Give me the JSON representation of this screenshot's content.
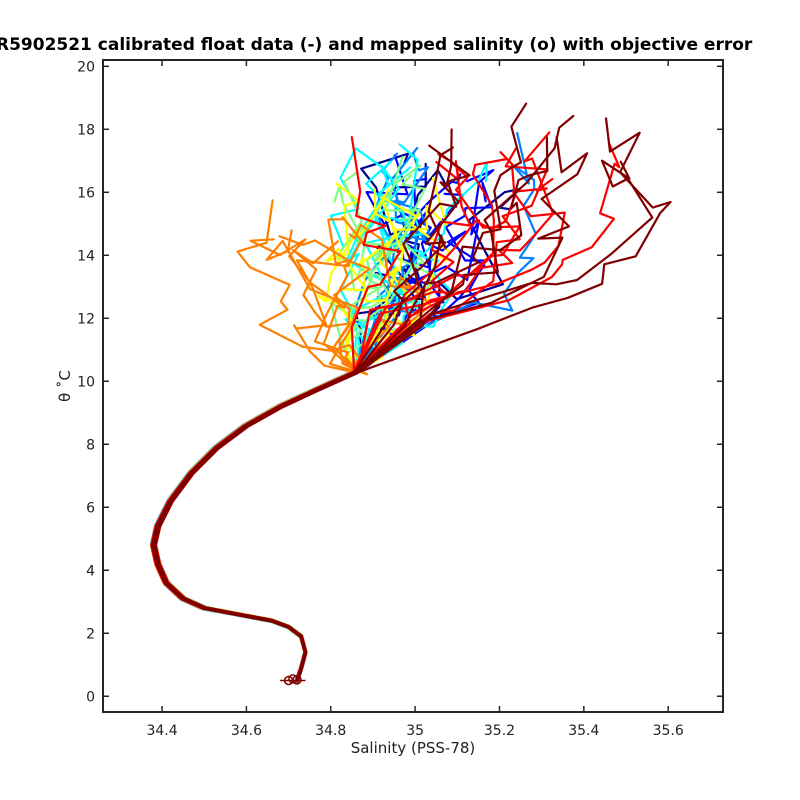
{
  "chart_data": {
    "type": "line",
    "title": "R5902521 calibrated float data (-) and mapped salinity (o) with objective error",
    "xlabel": "Salinity (PSS-78)",
    "ylabel": "θ ˚C",
    "xlim": [
      34.26,
      35.73
    ],
    "ylim": [
      -0.5,
      20.2
    ],
    "xticks": [
      "34.4",
      "34.6",
      "34.8",
      "35",
      "35.2",
      "35.4",
      "35.6"
    ],
    "yticks": [
      "0",
      "2",
      "4",
      "6",
      "8",
      "10",
      "12",
      "14",
      "16",
      "18",
      "20"
    ],
    "grid": false,
    "legend": "none",
    "colormap": [
      "#00008f",
      "#0000ff",
      "#0080ff",
      "#00ffff",
      "#80ff80",
      "#ffff00",
      "#ff8000",
      "#ff0000",
      "#800000"
    ],
    "series_common_deep": {
      "x": [
        34.72,
        34.73,
        34.74,
        34.73,
        34.7,
        34.66,
        34.58,
        34.5,
        34.45,
        34.41,
        34.39,
        34.38,
        34.39,
        34.42,
        34.47,
        34.53,
        34.6,
        34.68,
        34.76,
        34.86
      ],
      "y": [
        0.5,
        0.9,
        1.4,
        1.9,
        2.2,
        2.4,
        2.6,
        2.8,
        3.1,
        3.6,
        4.2,
        4.8,
        5.4,
        6.2,
        7.1,
        7.9,
        8.6,
        9.2,
        9.7,
        10.3
      ]
    },
    "profile_groups": [
      {
        "color": "#00008f",
        "count": 4,
        "salinity_range": [
          34.88,
          35.35
        ],
        "theta_range": [
          11.2,
          17.6
        ]
      },
      {
        "color": "#0000ff",
        "count": 6,
        "salinity_range": [
          34.88,
          35.3
        ],
        "theta_range": [
          11.0,
          17.5
        ]
      },
      {
        "color": "#0080ff",
        "count": 5,
        "salinity_range": [
          34.9,
          35.25
        ],
        "theta_range": [
          11.5,
          18.0
        ]
      },
      {
        "color": "#00ffff",
        "count": 6,
        "salinity_range": [
          34.85,
          35.12
        ],
        "theta_range": [
          11.0,
          17.7
        ]
      },
      {
        "color": "#80ff80",
        "count": 6,
        "salinity_range": [
          34.85,
          35.1
        ],
        "theta_range": [
          10.8,
          17.0
        ]
      },
      {
        "color": "#ffff00",
        "count": 6,
        "salinity_range": [
          34.82,
          35.05
        ],
        "theta_range": [
          10.5,
          16.5
        ]
      },
      {
        "color": "#ff8000",
        "count": 8,
        "salinity_range": [
          34.62,
          35.0
        ],
        "theta_range": [
          10.2,
          16.0
        ]
      },
      {
        "color": "#ff0000",
        "count": 9,
        "salinity_range": [
          34.9,
          35.5
        ],
        "theta_range": [
          11.5,
          18.0
        ]
      },
      {
        "color": "#800000",
        "count": 9,
        "salinity_range": [
          35.0,
          35.63
        ],
        "theta_range": [
          11.5,
          19.1
        ]
      }
    ],
    "mapped_points": {
      "x": [
        34.71,
        34.7,
        34.72
      ],
      "y": [
        0.55,
        0.5,
        0.52
      ],
      "marker": "o"
    }
  }
}
